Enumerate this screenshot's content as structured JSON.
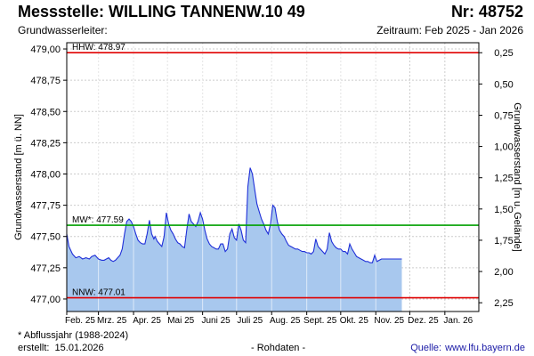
{
  "header": {
    "station": "Messstelle: WILLING TANNENW.10 49",
    "number": "Nr: 48752",
    "aquifer": "Grundwasserleiter:",
    "period": "Zeitraum: Feb 2025 - Jan 2026"
  },
  "footer": {
    "note": "* Abflussjahr (1988-2024)",
    "created_label": "erstellt:",
    "created_date": "15.01.2026",
    "raw": "- Rohdaten -",
    "source_label": "Quelle:",
    "source_url": "www.lfu.bayern.de"
  },
  "colors": {
    "fill": "#a8c8ee",
    "line": "#1f2fd8",
    "hhw": "#e00000",
    "mw": "#00a000",
    "nnw": "#e00000",
    "grid": "#cccccc"
  },
  "chart_data": {
    "type": "area",
    "xlabel": "",
    "ylabel": "Grundwasserstand [m ü. NN]",
    "ylabel_right": "Grundwasserstand [m u. Gelände]",
    "ylim": [
      476.9,
      479.05
    ],
    "y_ticks": [
      "479,00",
      "478,75",
      "478,50",
      "478,25",
      "478,00",
      "477,75",
      "477,50",
      "477,25",
      "477,00"
    ],
    "y_tick_values": [
      479.0,
      478.75,
      478.5,
      478.25,
      478.0,
      477.75,
      477.5,
      477.25,
      477.0
    ],
    "y2_ticks": [
      "0,25",
      "0,50",
      "0,75",
      "1,00",
      "1,25",
      "1,50",
      "1,75",
      "2,00",
      "2,25"
    ],
    "y2_tick_values": [
      478.97,
      478.72,
      478.47,
      478.22,
      477.97,
      477.72,
      477.47,
      477.22,
      476.97
    ],
    "x_ticks": [
      "Feb. 25",
      "Mrz. 25",
      "Apr. 25",
      "Mai 25",
      "Juni 25",
      "Juli 25",
      "Aug. 25",
      "Sept. 25",
      "Okt. 25",
      "Nov. 25",
      "Dez. 25",
      "Jan. 26"
    ],
    "x_tick_days": [
      0,
      28,
      59,
      89,
      120,
      150,
      181,
      212,
      242,
      273,
      303,
      334
    ],
    "x_range_days": [
      0,
      364
    ],
    "reference_lines": [
      {
        "label": "HHW: 478.97",
        "value": 478.97,
        "color": "#e00000"
      },
      {
        "label": "MW*: 477.59",
        "value": 477.59,
        "color": "#00a000"
      },
      {
        "label": "NNW: 477.01",
        "value": 477.01,
        "color": "#e00000"
      }
    ],
    "series": [
      {
        "x": [
          0,
          2,
          5,
          8,
          11,
          14,
          17,
          20,
          22,
          25,
          28,
          31,
          33,
          35,
          37,
          39,
          41,
          43,
          45,
          47,
          49,
          51,
          53,
          55,
          57,
          59,
          61,
          63,
          65,
          67,
          69,
          71,
          73,
          75,
          77,
          78,
          80,
          82,
          84,
          86,
          88,
          90,
          92,
          94,
          96,
          98,
          100,
          102,
          104,
          106,
          108,
          110,
          112,
          114,
          116,
          118,
          120,
          122,
          124,
          126,
          128,
          130,
          132,
          134,
          136,
          138,
          140,
          142,
          144,
          146,
          148,
          150,
          152,
          154,
          156,
          158,
          160,
          162,
          164,
          166,
          168,
          170,
          172,
          174,
          176,
          178,
          180,
          182,
          184,
          186,
          188,
          190,
          192,
          194,
          196,
          198,
          200,
          202,
          204,
          206,
          208,
          210,
          212,
          214,
          216,
          218,
          220,
          222,
          224,
          226,
          228,
          230,
          232,
          234,
          236,
          238,
          240,
          242,
          244,
          246,
          248,
          250,
          252,
          254,
          256,
          258,
          260,
          262,
          264,
          266,
          268,
          270,
          272,
          274,
          276,
          278,
          280,
          282,
          284,
          286,
          288,
          290,
          292,
          294,
          296
        ],
        "y": [
          477.52,
          477.42,
          477.36,
          477.33,
          477.34,
          477.32,
          477.33,
          477.32,
          477.34,
          477.35,
          477.32,
          477.31,
          477.31,
          477.32,
          477.33,
          477.31,
          477.3,
          477.31,
          477.33,
          477.35,
          477.4,
          477.52,
          477.62,
          477.64,
          477.62,
          477.58,
          477.52,
          477.47,
          477.45,
          477.44,
          477.44,
          477.52,
          477.63,
          477.52,
          477.48,
          477.5,
          477.46,
          477.44,
          477.42,
          477.5,
          477.69,
          477.6,
          477.55,
          477.52,
          477.48,
          477.45,
          477.44,
          477.42,
          477.41,
          477.55,
          477.68,
          477.62,
          477.6,
          477.58,
          477.62,
          477.69,
          477.64,
          477.55,
          477.48,
          477.44,
          477.42,
          477.41,
          477.4,
          477.4,
          477.44,
          477.44,
          477.38,
          477.4,
          477.52,
          477.56,
          477.49,
          477.47,
          477.6,
          477.55,
          477.47,
          477.45,
          477.9,
          478.05,
          478.0,
          477.88,
          477.76,
          477.7,
          477.64,
          477.6,
          477.55,
          477.52,
          477.6,
          477.75,
          477.73,
          477.62,
          477.55,
          477.52,
          477.5,
          477.46,
          477.43,
          477.42,
          477.41,
          477.4,
          477.4,
          477.39,
          477.38,
          477.38,
          477.37,
          477.37,
          477.36,
          477.38,
          477.48,
          477.42,
          477.4,
          477.38,
          477.36,
          477.4,
          477.53,
          477.46,
          477.43,
          477.41,
          477.4,
          477.4,
          477.38,
          477.38,
          477.36,
          477.44,
          477.4,
          477.37,
          477.34,
          477.33,
          477.32,
          477.31,
          477.3,
          477.3,
          477.29,
          477.29,
          477.35,
          477.3,
          477.31,
          477.32,
          477.32,
          477.32,
          477.32,
          477.32,
          477.32,
          477.32,
          477.32,
          477.32,
          477.32
        ]
      }
    ],
    "grid": true
  }
}
